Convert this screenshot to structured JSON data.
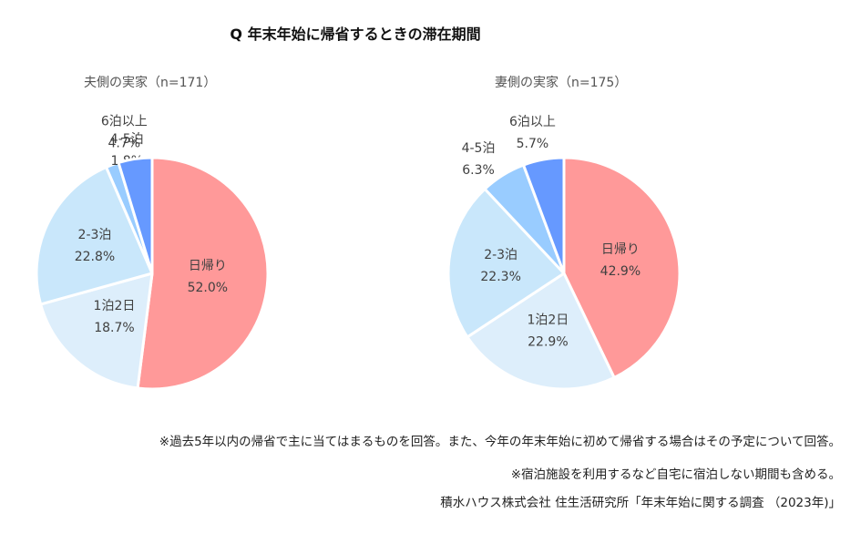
{
  "title": "Q 年末年始に帰省するときの滞在期間",
  "chart_data": [
    {
      "type": "pie",
      "title": "夫側の実家（n=171）",
      "slices": [
        {
          "label": "日帰り",
          "value": 52.0,
          "display": "52.0%",
          "color": "#FF9999"
        },
        {
          "label": "1泊2日",
          "value": 18.7,
          "display": "18.7%",
          "color": "#DDEEFB"
        },
        {
          "label": "2-3泊",
          "value": 22.8,
          "display": "22.8%",
          "color": "#C9E7FB"
        },
        {
          "label": "4-5泊",
          "value": 1.8,
          "display": "1.8%",
          "color": "#99CCFF"
        },
        {
          "label": "6泊以上",
          "value": 4.7,
          "display": "4.7%",
          "color": "#6699FF"
        }
      ]
    },
    {
      "type": "pie",
      "title": "妻側の実家（n=175）",
      "slices": [
        {
          "label": "日帰り",
          "value": 42.9,
          "display": "42.9%",
          "color": "#FF9999"
        },
        {
          "label": "1泊2日",
          "value": 22.9,
          "display": "22.9%",
          "color": "#DDEEFB"
        },
        {
          "label": "2-3泊",
          "value": 22.3,
          "display": "22.3%",
          "color": "#C9E7FB"
        },
        {
          "label": "4-5泊",
          "value": 6.3,
          "display": "6.3%",
          "color": "#99CCFF"
        },
        {
          "label": "6泊以上",
          "value": 5.7,
          "display": "5.7%",
          "color": "#6699FF"
        }
      ]
    }
  ],
  "notes": [
    "※過去5年以内の帰省で主に当てはまるものを回答。また、今年の年末年始に初めて帰省する場合はその予定について回答。",
    "※宿泊施設を利用するなど自宅に宿泊しない期間も含める。",
    "積水ハウス株式会社 住生活研究所「年末年始に関する調査 （2023年)」"
  ]
}
